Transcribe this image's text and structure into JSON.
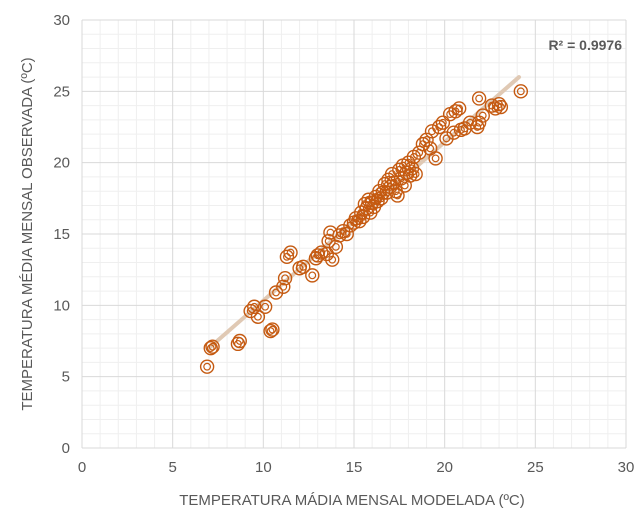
{
  "chart_data": {
    "type": "scatter",
    "title": "",
    "xlabel": "TEMPERATURA MÁDIA MENSAL MODELADA (ºC)",
    "ylabel": "TEMPERATURA MÉDIA MENSAL OBSERVADA (ºC)",
    "xlim": [
      0,
      30
    ],
    "ylim": [
      0,
      30
    ],
    "x_ticks": [
      0,
      5,
      10,
      15,
      20,
      25,
      30
    ],
    "y_ticks": [
      0,
      5,
      10,
      15,
      20,
      25,
      30
    ],
    "x_tick_labels": [
      "0",
      "5",
      "10",
      "15",
      "20",
      "25",
      "30"
    ],
    "y_tick_labels": [
      "0",
      "5",
      "10",
      "15",
      "20",
      "25",
      "30"
    ],
    "grid": true,
    "minor_grid": true,
    "marker": "double-circle",
    "colors": {
      "marker": "#c55a11",
      "trendline": "#e0c9b4",
      "major_grid": "#d9d9d9",
      "minor_grid": "#efefef",
      "text": "#595959"
    },
    "annotation": "R² = 0.9976",
    "trendline": {
      "type": "linear",
      "x_range": [
        7,
        24.1
      ],
      "y_at_start": 7.0,
      "y_at_end": 26.0
    },
    "points": [
      [
        6.9,
        5.7
      ],
      [
        7.1,
        7.0
      ],
      [
        7.2,
        7.1
      ],
      [
        8.6,
        7.3
      ],
      [
        8.7,
        7.5
      ],
      [
        9.3,
        9.6
      ],
      [
        9.5,
        9.9
      ],
      [
        9.7,
        9.2
      ],
      [
        10.1,
        9.9
      ],
      [
        10.4,
        8.2
      ],
      [
        10.5,
        8.3
      ],
      [
        10.7,
        10.9
      ],
      [
        11.1,
        11.3
      ],
      [
        11.2,
        11.9
      ],
      [
        11.3,
        13.4
      ],
      [
        11.5,
        13.7
      ],
      [
        12.0,
        12.6
      ],
      [
        12.2,
        12.7
      ],
      [
        12.7,
        12.1
      ],
      [
        12.9,
        13.3
      ],
      [
        13.0,
        13.5
      ],
      [
        13.2,
        13.7
      ],
      [
        13.5,
        13.6
      ],
      [
        13.6,
        14.5
      ],
      [
        13.7,
        15.1
      ],
      [
        13.8,
        13.2
      ],
      [
        14.0,
        14.1
      ],
      [
        14.2,
        14.9
      ],
      [
        14.4,
        15.2
      ],
      [
        14.6,
        15.0
      ],
      [
        14.8,
        15.6
      ],
      [
        15.0,
        15.8
      ],
      [
        15.1,
        16.1
      ],
      [
        15.3,
        15.9
      ],
      [
        15.4,
        16.5
      ],
      [
        15.5,
        16.2
      ],
      [
        15.6,
        17.1
      ],
      [
        15.7,
        16.8
      ],
      [
        15.8,
        17.4
      ],
      [
        15.9,
        16.5
      ],
      [
        16.0,
        17.2
      ],
      [
        16.1,
        16.9
      ],
      [
        16.2,
        17.6
      ],
      [
        16.3,
        17.3
      ],
      [
        16.4,
        18.0
      ],
      [
        16.5,
        17.5
      ],
      [
        16.6,
        17.9
      ],
      [
        16.7,
        18.5
      ],
      [
        16.8,
        17.9
      ],
      [
        16.9,
        18.8
      ],
      [
        17.0,
        18.3
      ],
      [
        17.1,
        19.2
      ],
      [
        17.2,
        18.6
      ],
      [
        17.3,
        18.0
      ],
      [
        17.4,
        17.7
      ],
      [
        17.5,
        19.5
      ],
      [
        17.6,
        18.9
      ],
      [
        17.7,
        19.8
      ],
      [
        17.8,
        18.4
      ],
      [
        17.9,
        19.3
      ],
      [
        18.0,
        20.0
      ],
      [
        18.1,
        19.1
      ],
      [
        18.2,
        19.6
      ],
      [
        18.3,
        20.4
      ],
      [
        18.4,
        19.2
      ],
      [
        18.6,
        20.7
      ],
      [
        18.8,
        21.3
      ],
      [
        19.0,
        21.6
      ],
      [
        19.2,
        21.0
      ],
      [
        19.3,
        22.2
      ],
      [
        19.5,
        20.3
      ],
      [
        19.7,
        22.5
      ],
      [
        19.9,
        22.8
      ],
      [
        20.1,
        21.7
      ],
      [
        20.3,
        23.4
      ],
      [
        20.5,
        22.1
      ],
      [
        20.6,
        23.6
      ],
      [
        20.8,
        23.8
      ],
      [
        20.9,
        22.3
      ],
      [
        21.1,
        22.4
      ],
      [
        21.4,
        22.8
      ],
      [
        21.8,
        22.5
      ],
      [
        21.9,
        22.8
      ],
      [
        21.9,
        24.5
      ],
      [
        22.1,
        23.3
      ],
      [
        22.6,
        24.0
      ],
      [
        22.8,
        23.8
      ],
      [
        23.0,
        24.1
      ],
      [
        23.1,
        23.9
      ],
      [
        24.2,
        25.0
      ]
    ]
  }
}
